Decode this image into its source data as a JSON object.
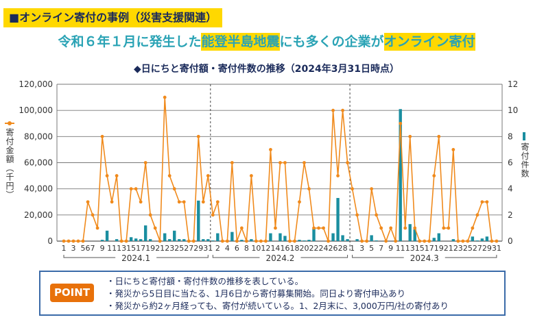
{
  "section_title": "■オンライン寄付の事例（災害支援関連）",
  "headline": {
    "pre": "令和６年１月に発生した",
    "hl1": "能登半島地震",
    "mid": "にも多くの企業が",
    "hl2": "オンライン寄付"
  },
  "colors": {
    "amount": "#f08a1c",
    "count": "#1a8ea0",
    "highlight": "#ffd800",
    "headline": "#2aa3b5",
    "point": "#e8710a"
  },
  "chart_data": {
    "type": "bar+line",
    "title": "◆日にちと寄付額・寄付件数の推移（2024年3月31日時点）",
    "ylabel_left": "寄付金額（千円）",
    "ylabel_right": "寄付件数",
    "ylim_left": [
      0,
      120000
    ],
    "ylim_right": [
      0,
      12
    ],
    "yticks_left": [
      "0",
      "20,000",
      "40,000",
      "60,000",
      "80,000",
      "100,000",
      "120,000"
    ],
    "yticks_right": [
      "0",
      "2",
      "4",
      "6",
      "8",
      "10",
      "12"
    ],
    "grid": true,
    "months": [
      {
        "label": "2024.1",
        "days": 31,
        "tick_labels": [
          "1",
          "3",
          "567",
          "9",
          "11",
          "13",
          "15",
          "17",
          "19",
          "21",
          "23",
          "25",
          "27",
          "29",
          "31"
        ],
        "amount": [
          0,
          0,
          0,
          0,
          0,
          30000,
          20000,
          10000,
          80000,
          50000,
          30000,
          50000,
          0,
          0,
          40000,
          40000,
          30000,
          60000,
          20000,
          10000,
          0,
          110000,
          50000,
          40000,
          30000,
          30000,
          0,
          0,
          80000,
          30000,
          50000
        ],
        "count": [
          0,
          0,
          0,
          0,
          0,
          0,
          0,
          0,
          0.1,
          0.8,
          0,
          0.15,
          0,
          0,
          0.3,
          0.2,
          0.15,
          1.2,
          0.15,
          0,
          0,
          0.6,
          0.15,
          0.8,
          0.15,
          0.15,
          0,
          0,
          3.1,
          0.15,
          0.15
        ]
      },
      {
        "label": "2024.2",
        "days": 29,
        "tick_labels": [
          "2",
          "4",
          "6",
          "8",
          "10",
          "12",
          "14",
          "16",
          "18",
          "20",
          "22",
          "24",
          "26",
          "28"
        ],
        "amount": [
          20000,
          30000,
          0,
          0,
          60000,
          0,
          10000,
          0,
          50000,
          0,
          0,
          0,
          70000,
          10000,
          60000,
          60000,
          0,
          0,
          30000,
          60000,
          40000,
          10000,
          10000,
          10000,
          0,
          100000,
          50000,
          100000,
          60000
        ],
        "count": [
          0.05,
          0.6,
          0,
          0,
          0.7,
          0,
          0.1,
          0,
          0.15,
          0,
          0,
          0,
          0.6,
          0,
          0.6,
          0.4,
          0,
          0,
          0.1,
          0.05,
          0.1,
          0.95,
          0,
          0,
          0,
          0.6,
          3.3,
          0.45,
          0.15
        ]
      },
      {
        "label": "2024.3",
        "days": 31,
        "tick_labels": [
          "1",
          "3",
          "5",
          "7",
          "9",
          "11",
          "13",
          "15",
          "17",
          "19",
          "21",
          "23",
          "25",
          "27",
          "29",
          "31"
        ],
        "amount": [
          40000,
          20000,
          0,
          0,
          40000,
          20000,
          10000,
          0,
          10000,
          0,
          90000,
          10000,
          80000,
          10000,
          0,
          0,
          0,
          50000,
          80000,
          10000,
          10000,
          70000,
          0,
          0,
          0,
          10000,
          20000,
          30000,
          30000,
          0,
          0
        ],
        "count": [
          0,
          0.15,
          0,
          0,
          0.45,
          0.05,
          0,
          0,
          0,
          0,
          10.1,
          0,
          1.3,
          0.9,
          0,
          0,
          0,
          0.25,
          0.6,
          0,
          0,
          0.15,
          0,
          0,
          0,
          0.35,
          0.05,
          0.2,
          0.35,
          0,
          0
        ]
      }
    ]
  },
  "point": {
    "badge": "POINT",
    "lines": [
      "・日にちと寄付額・寄付件数の推移を表している。",
      "・発災から5日目に当たる、1月6日から寄付募集開始。同日より寄付申込あり",
      "・発災から約2ヶ月経っても、寄付が続いている。1、2月末に、3,000万円/社の寄付あり"
    ]
  }
}
